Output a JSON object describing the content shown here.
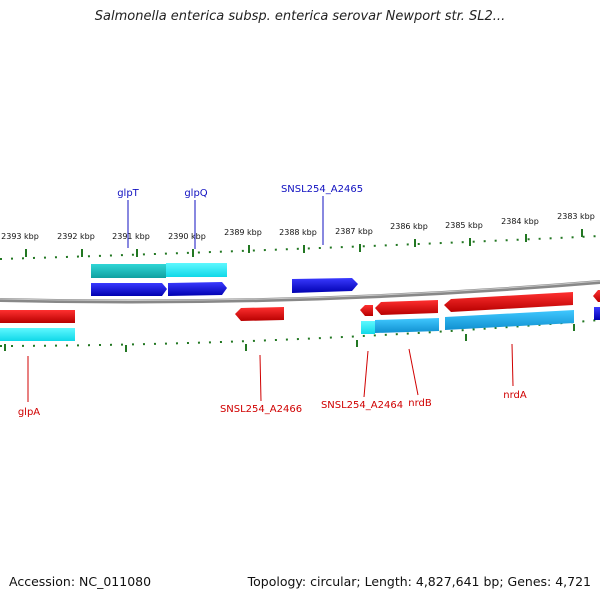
{
  "title": "Salmonella enterica subsp. enterica serovar Newport str. SL2...",
  "footer": {
    "accession": "Accession: NC_011080",
    "topology": "Topology: circular; Length: 4,827,641 bp; Genes: 4,721"
  },
  "ruler": {
    "ticks": [
      "2393 kbp",
      "2392 kbp",
      "2391 kbp",
      "2390 kbp",
      "2389 kbp",
      "2388 kbp",
      "2387 kbp",
      "2386 kbp",
      "2385 kbp",
      "2384 kbp",
      "2383 kbp"
    ]
  },
  "colors": {
    "forward_cds": "#1010d8",
    "forward_gene": "#18c8c8",
    "reverse_cds": "#e01010",
    "reverse_gene": "#19b8e8",
    "forward_label": "#1010c0",
    "reverse_label": "#d00000",
    "backbone": "#888888",
    "ruler_ticks": "#227722"
  },
  "genes": {
    "forward": [
      {
        "name": "glpT"
      },
      {
        "name": "glpQ"
      },
      {
        "name": "SNSL254_A2465"
      }
    ],
    "reverse": [
      {
        "name": "glpA"
      },
      {
        "name": "SNSL254_A2466"
      },
      {
        "name": "SNSL254_A2464"
      },
      {
        "name": "nrdB"
      },
      {
        "name": "nrdA"
      }
    ]
  }
}
